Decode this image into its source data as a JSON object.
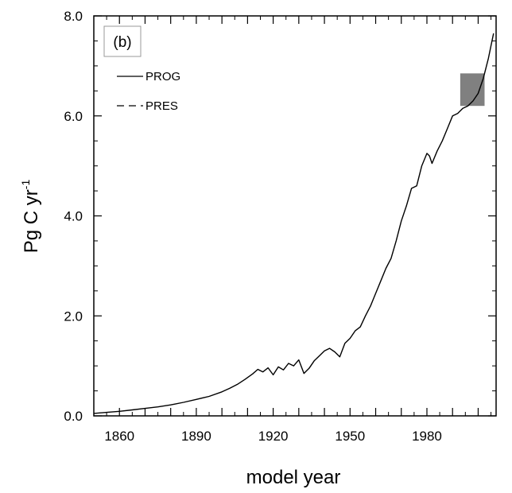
{
  "chart_data": {
    "type": "line",
    "panel_label": "(b)",
    "title": "",
    "xlabel": "model year",
    "ylabel_main": "Pg C yr",
    "ylabel_sup": "-1",
    "xlim": [
      1850,
      2007
    ],
    "ylim": [
      0,
      8
    ],
    "xticks": [
      1860,
      1890,
      1920,
      1950,
      1980
    ],
    "yticks": [
      0.0,
      2.0,
      4.0,
      6.0,
      8.0
    ],
    "ytick_labels": [
      "0.0",
      "2.0",
      "4.0",
      "6.0",
      "8.0"
    ],
    "grid": false,
    "legend_position": "top-left",
    "series": [
      {
        "name": "PROG",
        "style": "solid",
        "color": "#000000",
        "x": [
          1850,
          1855,
          1860,
          1865,
          1870,
          1875,
          1880,
          1885,
          1890,
          1895,
          1900,
          1903,
          1906,
          1909,
          1912,
          1914,
          1916,
          1918,
          1920,
          1922,
          1924,
          1926,
          1928,
          1930,
          1932,
          1934,
          1936,
          1938,
          1940,
          1942,
          1944,
          1946,
          1948,
          1950,
          1952,
          1954,
          1956,
          1958,
          1960,
          1962,
          1964,
          1966,
          1968,
          1970,
          1972,
          1974,
          1976,
          1978,
          1980,
          1981,
          1982,
          1984,
          1986,
          1988,
          1990,
          1992,
          1994,
          1996,
          1998,
          2000,
          2002,
          2004,
          2006
        ],
        "y": [
          0.05,
          0.07,
          0.09,
          0.12,
          0.15,
          0.18,
          0.22,
          0.27,
          0.33,
          0.39,
          0.48,
          0.55,
          0.63,
          0.73,
          0.84,
          0.93,
          0.88,
          0.96,
          0.82,
          0.98,
          0.92,
          1.05,
          1.0,
          1.12,
          0.85,
          0.95,
          1.1,
          1.2,
          1.3,
          1.35,
          1.28,
          1.18,
          1.45,
          1.55,
          1.7,
          1.78,
          2.0,
          2.2,
          2.45,
          2.7,
          2.95,
          3.15,
          3.5,
          3.9,
          4.2,
          4.55,
          4.6,
          5.0,
          5.25,
          5.2,
          5.05,
          5.3,
          5.5,
          5.75,
          6.0,
          6.05,
          6.15,
          6.2,
          6.3,
          6.45,
          6.75,
          7.15,
          7.65
        ]
      },
      {
        "name": "PRES",
        "style": "dashed",
        "color": "#000000",
        "x": [],
        "y": []
      }
    ],
    "annotations": [
      {
        "kind": "shaded-box",
        "x_range": [
          1993,
          2002.5
        ],
        "y_range": [
          6.2,
          6.85
        ],
        "color": "#808080"
      }
    ]
  }
}
